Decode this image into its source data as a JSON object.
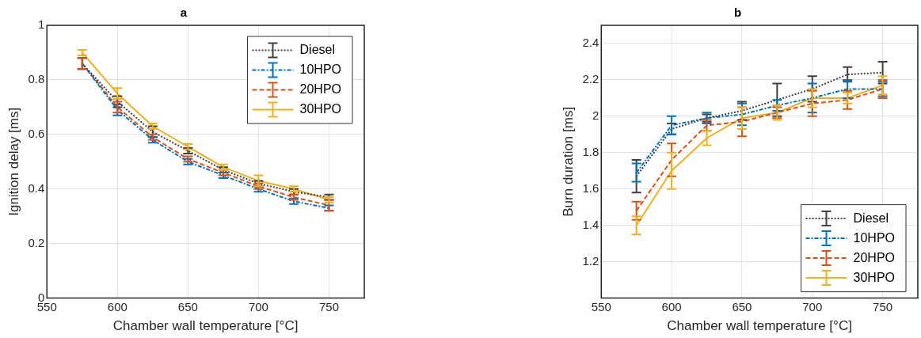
{
  "chart_data": [
    {
      "type": "line",
      "title": "a",
      "xlabel": "Chamber wall temperature [°C]",
      "ylabel": "Ignition delay [ms]",
      "x": [
        575,
        600,
        625,
        650,
        675,
        700,
        725,
        750
      ],
      "series": [
        {
          "name": "Diesel",
          "color": "#404040",
          "line_style": "dotted",
          "values": [
            0.86,
            0.72,
            0.61,
            0.54,
            0.47,
            0.42,
            0.39,
            0.37
          ],
          "errors": [
            0.02,
            0.02,
            0.02,
            0.01,
            0.01,
            0.01,
            0.01,
            0.01
          ]
        },
        {
          "name": "10HPO",
          "color": "#0072bd",
          "line_style": "dashdot",
          "values": [
            0.86,
            0.69,
            0.58,
            0.5,
            0.45,
            0.4,
            0.355,
            0.33
          ],
          "errors": [
            0.02,
            0.02,
            0.01,
            0.01,
            0.01,
            0.01,
            0.01,
            0.01
          ]
        },
        {
          "name": "20HPO",
          "color": "#d95319",
          "line_style": "dashed",
          "values": [
            0.86,
            0.7,
            0.59,
            0.51,
            0.46,
            0.41,
            0.37,
            0.34
          ],
          "errors": [
            0.02,
            0.02,
            0.01,
            0.01,
            0.01,
            0.01,
            0.01,
            0.02
          ]
        },
        {
          "name": "30HPO",
          "color": "#edb120",
          "line_style": "solid",
          "values": [
            0.9,
            0.75,
            0.63,
            0.555,
            0.48,
            0.43,
            0.4,
            0.36
          ],
          "errors": [
            0.01,
            0.02,
            0.01,
            0.01,
            0.01,
            0.02,
            0.01,
            0.01
          ]
        }
      ],
      "xlim": [
        550,
        775
      ],
      "xticks": [
        550,
        600,
        650,
        700,
        750
      ],
      "ylim": [
        0,
        1
      ],
      "yticks": [
        0,
        0.2,
        0.4,
        0.6,
        0.8,
        1
      ],
      "grid": true,
      "legend": "top right"
    },
    {
      "type": "line",
      "title": "b",
      "xlabel": "Chamber wall temperature [°C]",
      "ylabel": "Burn duration [ms]",
      "x": [
        575,
        600,
        625,
        650,
        675,
        700,
        725,
        750
      ],
      "series": [
        {
          "name": "Diesel",
          "color": "#404040",
          "line_style": "dotted",
          "values": [
            1.67,
            1.93,
            1.99,
            2.03,
            2.09,
            2.15,
            2.23,
            2.24
          ],
          "errors": [
            0.09,
            0.03,
            0.02,
            0.05,
            0.09,
            0.07,
            0.04,
            0.06
          ]
        },
        {
          "name": "10HPO",
          "color": "#0072bd",
          "line_style": "dashdot",
          "values": [
            1.69,
            1.95,
            1.99,
            2.01,
            2.06,
            2.1,
            2.15,
            2.15
          ],
          "errors": [
            0.05,
            0.05,
            0.03,
            0.06,
            0.03,
            0.08,
            0.05,
            [
              2.11,
              2.19
            ]
          ]
        },
        {
          "name": "20HPO",
          "color": "#d95319",
          "line_style": "dashed",
          "values": [
            1.48,
            1.76,
            1.95,
            1.97,
            2.02,
            2.07,
            2.09,
            2.15
          ],
          "errors": [
            0.05,
            0.09,
            0.03,
            0.08,
            0.03,
            0.07,
            0.05,
            0.05
          ]
        },
        {
          "name": "30HPO",
          "color": "#edb120",
          "line_style": "solid",
          "values": [
            1.4,
            1.7,
            1.88,
            1.99,
            2.02,
            2.1,
            2.1,
            2.17
          ],
          "errors": [
            0.05,
            0.1,
            0.04,
            0.06,
            0.04,
            0.05,
            0.03,
            0.05
          ]
        }
      ],
      "xlim": [
        550,
        775
      ],
      "xticks": [
        550,
        600,
        650,
        700,
        750
      ],
      "ylim": [
        1,
        2.5
      ],
      "yticks": [
        1.2,
        1.4,
        1.6,
        1.8,
        2,
        2.2,
        2.4
      ],
      "grid": true,
      "legend": "bottom right"
    }
  ]
}
